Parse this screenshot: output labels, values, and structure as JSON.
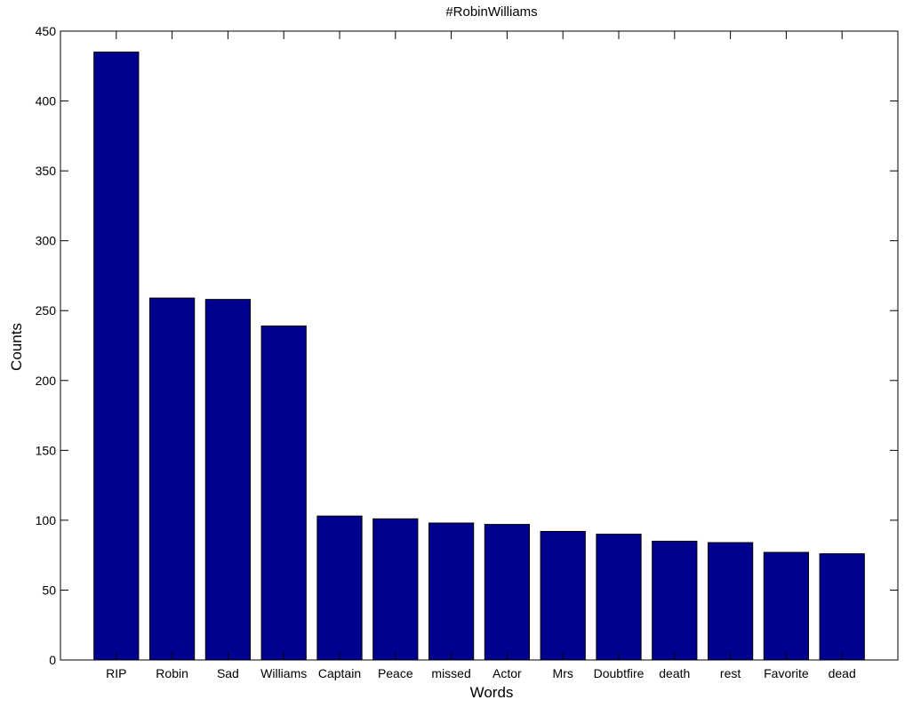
{
  "chart_data": {
    "type": "bar",
    "title": "#RobinWilliams",
    "xlabel": "Words",
    "ylabel": "Counts",
    "categories": [
      "RIP",
      "Robin",
      "Sad",
      "Williams",
      "Captain",
      "Peace",
      "missed",
      "Actor",
      "Mrs",
      "Doubtfire",
      "death",
      "rest",
      "Favorite",
      "dead"
    ],
    "values": [
      435,
      259,
      258,
      239,
      103,
      101,
      98,
      97,
      92,
      90,
      85,
      84,
      77,
      76
    ],
    "ylim": [
      0,
      450
    ],
    "yticks": [
      0,
      50,
      100,
      150,
      200,
      250,
      300,
      350,
      400,
      450
    ],
    "grid": false,
    "colors": {
      "bar_fill": "#00008f",
      "bar_stroke": "#000000",
      "axis": "#000000",
      "background": "#ffffff"
    }
  }
}
